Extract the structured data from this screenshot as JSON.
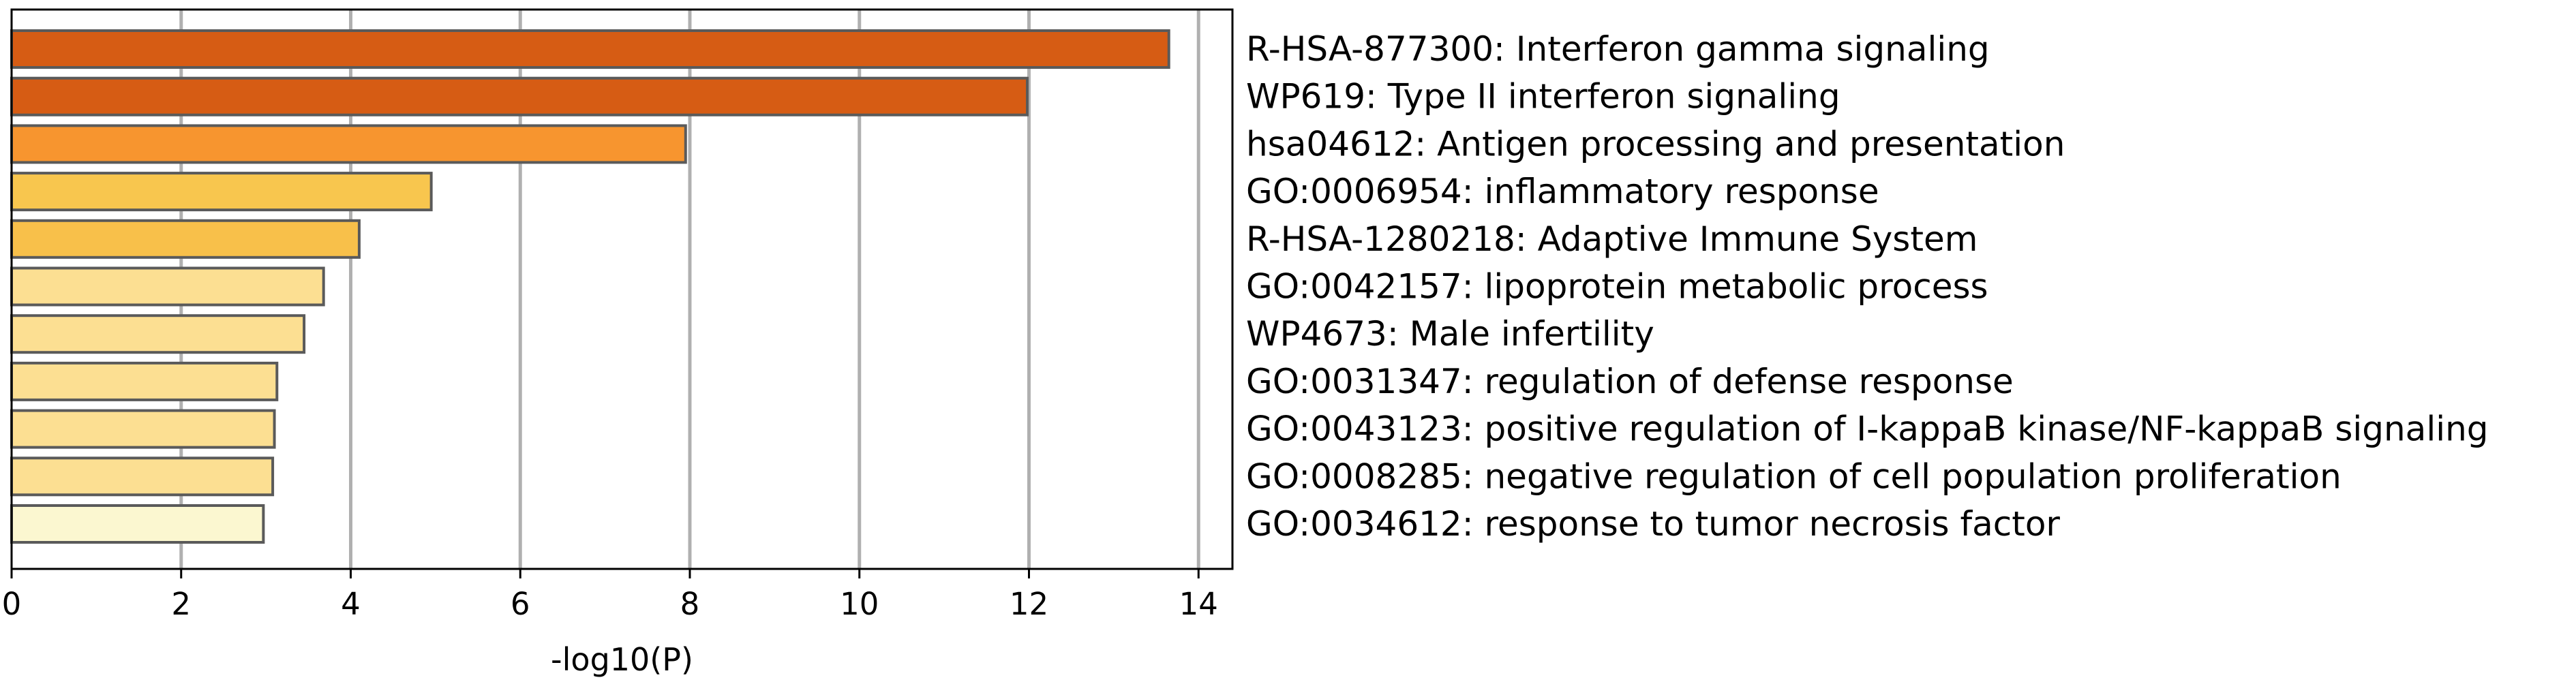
{
  "chart_data": {
    "type": "bar",
    "orientation": "horizontal",
    "categories": [
      "R-HSA-877300: Interferon gamma signaling",
      "WP619: Type II interferon signaling",
      "hsa04612: Antigen processing and presentation",
      "GO:0006954: inflammatory response",
      "R-HSA-1280218: Adaptive Immune System",
      "GO:0042157: lipoprotein metabolic process",
      "WP4673: Male infertility",
      "GO:0031347: regulation of defense response",
      "GO:0043123: positive regulation of I-kappaB kinase/NF-kappaB signaling",
      "GO:0008285: negative regulation of cell population proliferation",
      "GO:0034612: response to tumor necrosis factor"
    ],
    "values": [
      13.65,
      11.98,
      7.95,
      4.95,
      4.1,
      3.68,
      3.45,
      3.13,
      3.1,
      3.08,
      2.97
    ],
    "colors": [
      "#d65c14",
      "#d65c14",
      "#f7952f",
      "#f8c64e",
      "#f8c04a",
      "#fcdf92",
      "#fcdf92",
      "#fcdf92",
      "#fcdf92",
      "#fcdf92",
      "#fbf7d0"
    ],
    "xlabel": "-log10(P)",
    "ylabel": "",
    "title": "",
    "xlim": [
      0,
      14.4
    ],
    "xticks": [
      0,
      2,
      4,
      6,
      8,
      10,
      12,
      14
    ],
    "grid": "vertical",
    "labels_position": "right"
  }
}
